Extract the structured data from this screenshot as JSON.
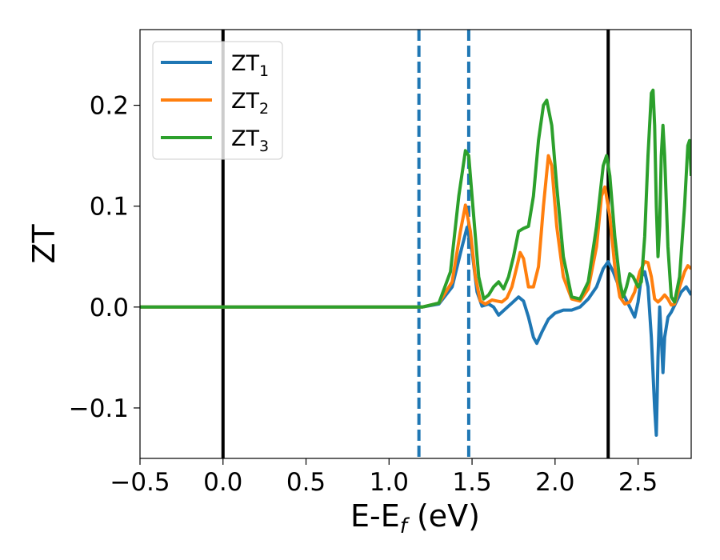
{
  "chart_data": {
    "type": "line",
    "xlabel": "E-E",
    "xlabel_sub": "f",
    "xlabel_unit": " (eV)",
    "ylabel": "ZT",
    "xlim": [
      -0.5,
      2.82
    ],
    "ylim": [
      -0.15,
      0.275
    ],
    "xticks": [
      -0.5,
      0.0,
      0.5,
      1.0,
      1.5,
      2.0,
      2.5
    ],
    "xtick_labels": [
      "−0.5",
      "0.0",
      "0.5",
      "1.0",
      "1.5",
      "2.0",
      "2.5"
    ],
    "yticks": [
      -0.1,
      0.0,
      0.1,
      0.2
    ],
    "ytick_labels": [
      "−0.1",
      "0.0",
      "0.1",
      "0.2"
    ],
    "grid": false,
    "legend_position": "top-left",
    "vlines": [
      {
        "x": 0.0,
        "color": "#000000",
        "style": "solid"
      },
      {
        "x": 1.18,
        "color": "#1f77b4",
        "style": "dashed"
      },
      {
        "x": 1.48,
        "color": "#1f77b4",
        "style": "dashed"
      },
      {
        "x": 2.32,
        "color": "#000000",
        "style": "solid"
      }
    ],
    "series": [
      {
        "name": "ZT",
        "sub": "1",
        "color": "#1f77b4",
        "points": [
          [
            -0.5,
            0
          ],
          [
            1.2,
            0
          ],
          [
            1.3,
            0.003
          ],
          [
            1.38,
            0.02
          ],
          [
            1.44,
            0.06
          ],
          [
            1.47,
            0.079
          ],
          [
            1.5,
            0.055
          ],
          [
            1.53,
            0.015
          ],
          [
            1.56,
            0.001
          ],
          [
            1.6,
            0.003
          ],
          [
            1.63,
            0.0
          ],
          [
            1.66,
            -0.008
          ],
          [
            1.7,
            -0.002
          ],
          [
            1.74,
            0.004
          ],
          [
            1.78,
            0.01
          ],
          [
            1.81,
            0.006
          ],
          [
            1.84,
            -0.01
          ],
          [
            1.87,
            -0.03
          ],
          [
            1.89,
            -0.036
          ],
          [
            1.92,
            -0.025
          ],
          [
            1.96,
            -0.012
          ],
          [
            2.0,
            -0.006
          ],
          [
            2.05,
            -0.003
          ],
          [
            2.1,
            -0.003
          ],
          [
            2.15,
            0.0
          ],
          [
            2.2,
            0.008
          ],
          [
            2.25,
            0.02
          ],
          [
            2.29,
            0.038
          ],
          [
            2.32,
            0.045
          ],
          [
            2.35,
            0.035
          ],
          [
            2.39,
            0.018
          ],
          [
            2.42,
            0.01
          ],
          [
            2.45,
            0.0
          ],
          [
            2.48,
            -0.01
          ],
          [
            2.5,
            0.005
          ],
          [
            2.52,
            0.03
          ],
          [
            2.54,
            0.035
          ],
          [
            2.56,
            0.02
          ],
          [
            2.58,
            -0.03
          ],
          [
            2.6,
            -0.1
          ],
          [
            2.61,
            -0.127
          ],
          [
            2.62,
            -0.05
          ],
          [
            2.63,
            0.0
          ],
          [
            2.64,
            -0.03
          ],
          [
            2.65,
            -0.065
          ],
          [
            2.66,
            -0.03
          ],
          [
            2.68,
            -0.01
          ],
          [
            2.7,
            -0.005
          ],
          [
            2.73,
            0.005
          ],
          [
            2.76,
            0.015
          ],
          [
            2.79,
            0.02
          ],
          [
            2.82,
            0.012
          ]
        ]
      },
      {
        "name": "ZT",
        "sub": "2",
        "color": "#ff7f0e",
        "points": [
          [
            -0.5,
            0
          ],
          [
            1.2,
            0
          ],
          [
            1.3,
            0.004
          ],
          [
            1.38,
            0.025
          ],
          [
            1.43,
            0.075
          ],
          [
            1.46,
            0.101
          ],
          [
            1.49,
            0.075
          ],
          [
            1.52,
            0.03
          ],
          [
            1.55,
            0.006
          ],
          [
            1.58,
            0.003
          ],
          [
            1.62,
            0.007
          ],
          [
            1.65,
            0.006
          ],
          [
            1.68,
            0.005
          ],
          [
            1.71,
            0.009
          ],
          [
            1.74,
            0.02
          ],
          [
            1.77,
            0.04
          ],
          [
            1.79,
            0.054
          ],
          [
            1.81,
            0.048
          ],
          [
            1.84,
            0.02
          ],
          [
            1.87,
            0.02
          ],
          [
            1.9,
            0.04
          ],
          [
            1.93,
            0.1
          ],
          [
            1.96,
            0.15
          ],
          [
            1.98,
            0.14
          ],
          [
            2.01,
            0.08
          ],
          [
            2.05,
            0.03
          ],
          [
            2.1,
            0.008
          ],
          [
            2.15,
            0.006
          ],
          [
            2.2,
            0.018
          ],
          [
            2.25,
            0.06
          ],
          [
            2.28,
            0.11
          ],
          [
            2.3,
            0.119
          ],
          [
            2.33,
            0.09
          ],
          [
            2.36,
            0.04
          ],
          [
            2.39,
            0.01
          ],
          [
            2.42,
            0.003
          ],
          [
            2.45,
            0.005
          ],
          [
            2.48,
            0.015
          ],
          [
            2.51,
            0.035
          ],
          [
            2.54,
            0.045
          ],
          [
            2.56,
            0.044
          ],
          [
            2.58,
            0.03
          ],
          [
            2.6,
            0.008
          ],
          [
            2.62,
            0.005
          ],
          [
            2.64,
            0.008
          ],
          [
            2.66,
            0.012
          ],
          [
            2.68,
            0.008
          ],
          [
            2.7,
            0.002
          ],
          [
            2.72,
            0.003
          ],
          [
            2.75,
            0.02
          ],
          [
            2.78,
            0.035
          ],
          [
            2.8,
            0.041
          ],
          [
            2.82,
            0.038
          ]
        ]
      },
      {
        "name": "ZT",
        "sub": "3",
        "color": "#2ca02c",
        "points": [
          [
            -0.5,
            0
          ],
          [
            1.2,
            0
          ],
          [
            1.3,
            0.004
          ],
          [
            1.37,
            0.035
          ],
          [
            1.42,
            0.11
          ],
          [
            1.46,
            0.155
          ],
          [
            1.48,
            0.15
          ],
          [
            1.51,
            0.09
          ],
          [
            1.54,
            0.03
          ],
          [
            1.57,
            0.008
          ],
          [
            1.6,
            0.012
          ],
          [
            1.63,
            0.02
          ],
          [
            1.66,
            0.025
          ],
          [
            1.69,
            0.018
          ],
          [
            1.72,
            0.03
          ],
          [
            1.75,
            0.05
          ],
          [
            1.78,
            0.075
          ],
          [
            1.81,
            0.078
          ],
          [
            1.84,
            0.08
          ],
          [
            1.87,
            0.11
          ],
          [
            1.9,
            0.165
          ],
          [
            1.93,
            0.2
          ],
          [
            1.95,
            0.205
          ],
          [
            1.98,
            0.18
          ],
          [
            2.01,
            0.12
          ],
          [
            2.05,
            0.05
          ],
          [
            2.1,
            0.01
          ],
          [
            2.15,
            0.008
          ],
          [
            2.2,
            0.025
          ],
          [
            2.25,
            0.08
          ],
          [
            2.29,
            0.14
          ],
          [
            2.31,
            0.15
          ],
          [
            2.33,
            0.13
          ],
          [
            2.36,
            0.07
          ],
          [
            2.39,
            0.025
          ],
          [
            2.41,
            0.01
          ],
          [
            2.43,
            0.02
          ],
          [
            2.45,
            0.033
          ],
          [
            2.47,
            0.03
          ],
          [
            2.5,
            0.02
          ],
          [
            2.52,
            0.025
          ],
          [
            2.54,
            0.07
          ],
          [
            2.56,
            0.15
          ],
          [
            2.58,
            0.212
          ],
          [
            2.59,
            0.215
          ],
          [
            2.6,
            0.18
          ],
          [
            2.61,
            0.1
          ],
          [
            2.62,
            0.05
          ],
          [
            2.63,
            0.08
          ],
          [
            2.64,
            0.15
          ],
          [
            2.65,
            0.18
          ],
          [
            2.66,
            0.15
          ],
          [
            2.68,
            0.06
          ],
          [
            2.7,
            0.01
          ],
          [
            2.72,
            0.005
          ],
          [
            2.75,
            0.03
          ],
          [
            2.78,
            0.1
          ],
          [
            2.8,
            0.16
          ],
          [
            2.81,
            0.165
          ],
          [
            2.82,
            0.13
          ]
        ]
      }
    ]
  }
}
